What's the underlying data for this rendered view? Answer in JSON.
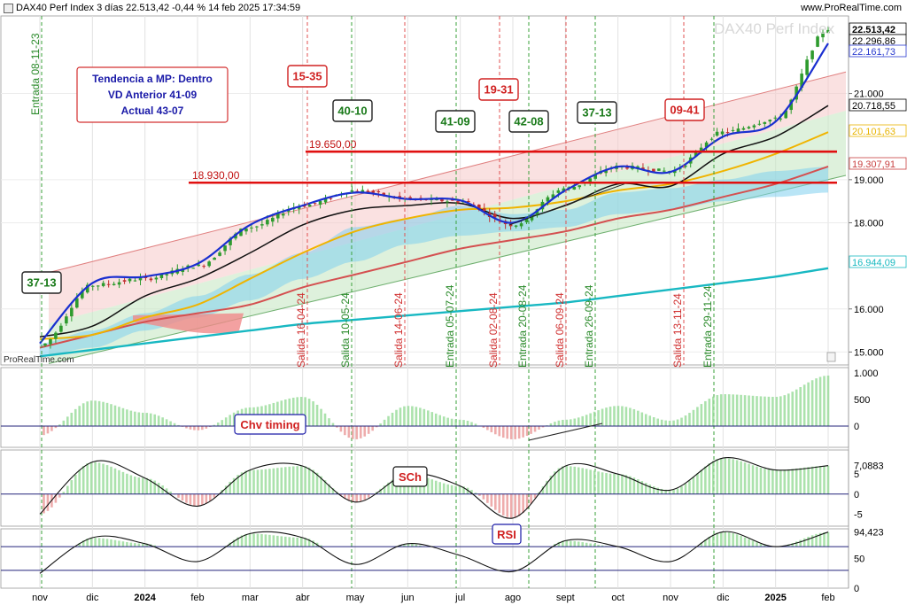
{
  "header": {
    "title": "DAX40 Perf Index 3 días 22.513,42 -0,44 % 14 feb 2025 17:34:59",
    "site": "www.ProRealTime.com",
    "watermark": "DAX40 Perf Index",
    "footer_logo": "ProRealTime.com"
  },
  "info_box": {
    "line1": "Tendencia a MP: Dentro",
    "line2": "VD Anterior 41-09",
    "line3": "Actual 43-07"
  },
  "level_labels": [
    "19.650,00",
    "18.930,00"
  ],
  "boxes": {
    "green": [
      "40-10",
      "41-09",
      "42-08",
      "37-13",
      "37-13"
    ],
    "red": [
      "15-35",
      "19-31",
      "09-41"
    ]
  },
  "vline_labels": {
    "green": [
      "Entrada 08-11-23",
      "Salida 10-05-24",
      "Entrada 05-07-24",
      "Entrada 20-08-24",
      "Entrada 26-09-24",
      "Entrada 29-11-24"
    ],
    "red": [
      "Salida 16-04-24",
      "Salida 14-06-24",
      "Salida 02-08-24",
      "Salida 06-09-24",
      "Salida 13-11-24"
    ]
  },
  "price_axis": {
    "ticks": [
      "15.000",
      "16.000",
      "18.000",
      "19.000",
      "21.000"
    ],
    "price_labels": [
      {
        "text": "22.513,42",
        "color": "#000000"
      },
      {
        "text": "22.296,86",
        "color": "#000000"
      },
      {
        "text": "22.161,73",
        "color": "#2a3bd0"
      },
      {
        "text": "20.718,55",
        "color": "#000000"
      },
      {
        "text": "20.101,63",
        "color": "#e8b400"
      },
      {
        "text": "19.307,91",
        "color": "#c84040"
      },
      {
        "text": "16.944,09",
        "color": "#17b9c0"
      }
    ]
  },
  "indicators": {
    "chv": {
      "label": "Chv timing",
      "ticks": [
        "1.000",
        "500",
        "0"
      ]
    },
    "sch": {
      "label": "SCh",
      "ticks": [
        "7,0883",
        "5",
        "0",
        "-5"
      ]
    },
    "rsi": {
      "label": "RSI",
      "ticks": [
        "94,423",
        "50",
        "0"
      ]
    }
  },
  "months": [
    "nov",
    "dic",
    "2024",
    "feb",
    "mar",
    "abr",
    "may",
    "jun",
    "jul",
    "ago",
    "sept",
    "oct",
    "nov",
    "dic",
    "2025",
    "feb"
  ],
  "colors": {
    "up": "#2e9b2e",
    "down": "#c03030",
    "price_line": "#1a2fd0",
    "ma_black": "#111111",
    "ma_yellow": "#f0b400",
    "ma_red": "#d45050",
    "ma_cyan": "#18b8c2",
    "cloud": "#7fd0ee",
    "level": "#e01010"
  },
  "chart_data": [
    {
      "type": "candlestick",
      "title": "DAX40 Perf Index 3 días",
      "last": 22513.42,
      "change_pct": -0.44,
      "x": [
        "nov",
        "dic",
        "2024",
        "feb",
        "mar",
        "abr",
        "may",
        "jun",
        "jul",
        "ago",
        "sept",
        "oct",
        "nov",
        "dic",
        "2025",
        "feb"
      ],
      "close": [
        15150,
        16550,
        16700,
        17000,
        17900,
        18400,
        18750,
        18550,
        18500,
        17950,
        18800,
        19300,
        19200,
        20100,
        20400,
        22500
      ],
      "series": [
        {
          "values": [
            15200,
            16600,
            16750,
            17050,
            17950,
            18400,
            18700,
            18550,
            18520,
            18000,
            18750,
            19300,
            19180,
            20000,
            20350,
            22162
          ]
        },
        {
          "values": [
            15350,
            15600,
            16300,
            16700,
            17300,
            17950,
            18300,
            18400,
            18450,
            18100,
            18400,
            18900,
            18850,
            19600,
            20000,
            20719
          ]
        },
        {
          "values": [
            15300,
            15400,
            15800,
            16100,
            16700,
            17300,
            17800,
            18100,
            18300,
            18350,
            18500,
            18750,
            18900,
            19200,
            19600,
            20102
          ]
        },
        {
          "values": [
            15100,
            15400,
            15700,
            15900,
            16100,
            16500,
            16800,
            17100,
            17400,
            17600,
            17800,
            18100,
            18300,
            18600,
            18900,
            19308
          ]
        },
        {
          "values": [
            14900,
            15050,
            15200,
            15350,
            15500,
            15650,
            15750,
            15850,
            15950,
            16050,
            16150,
            16300,
            16450,
            16600,
            16750,
            16944
          ]
        }
      ],
      "levels": [
        19650,
        18930
      ],
      "ylim": [
        14700,
        22800
      ]
    },
    {
      "type": "area",
      "title": "Chv timing",
      "x": [
        "nov",
        "dic",
        "2024",
        "feb",
        "mar",
        "abr",
        "may",
        "jun",
        "jul",
        "ago",
        "sept",
        "oct",
        "nov",
        "dic",
        "2025",
        "feb"
      ],
      "values": [
        -180,
        480,
        250,
        -80,
        350,
        550,
        -250,
        380,
        120,
        -250,
        120,
        380,
        100,
        600,
        550,
        950
      ],
      "ylim": [
        -400,
        1100
      ]
    },
    {
      "type": "area",
      "title": "SCh",
      "x": [
        "nov",
        "dic",
        "2024",
        "feb",
        "mar",
        "abr",
        "may",
        "jun",
        "jul",
        "ago",
        "sept",
        "oct",
        "nov",
        "dic",
        "2025",
        "feb"
      ],
      "values": [
        -5,
        8,
        4,
        -3,
        6,
        7,
        -2,
        5,
        2,
        -6,
        7,
        5,
        1,
        9,
        6,
        7.0883
      ],
      "ylim": [
        -8,
        11
      ]
    },
    {
      "type": "line",
      "title": "RSI",
      "x": [
        "nov",
        "dic",
        "2024",
        "feb",
        "mar",
        "abr",
        "may",
        "jun",
        "jul",
        "ago",
        "sept",
        "oct",
        "nov",
        "dic",
        "2025",
        "feb"
      ],
      "values": [
        25,
        85,
        75,
        45,
        92,
        85,
        40,
        75,
        55,
        28,
        80,
        70,
        45,
        95,
        70,
        94.423
      ],
      "levels": [
        70,
        30
      ],
      "ylim": [
        0,
        100
      ]
    }
  ]
}
